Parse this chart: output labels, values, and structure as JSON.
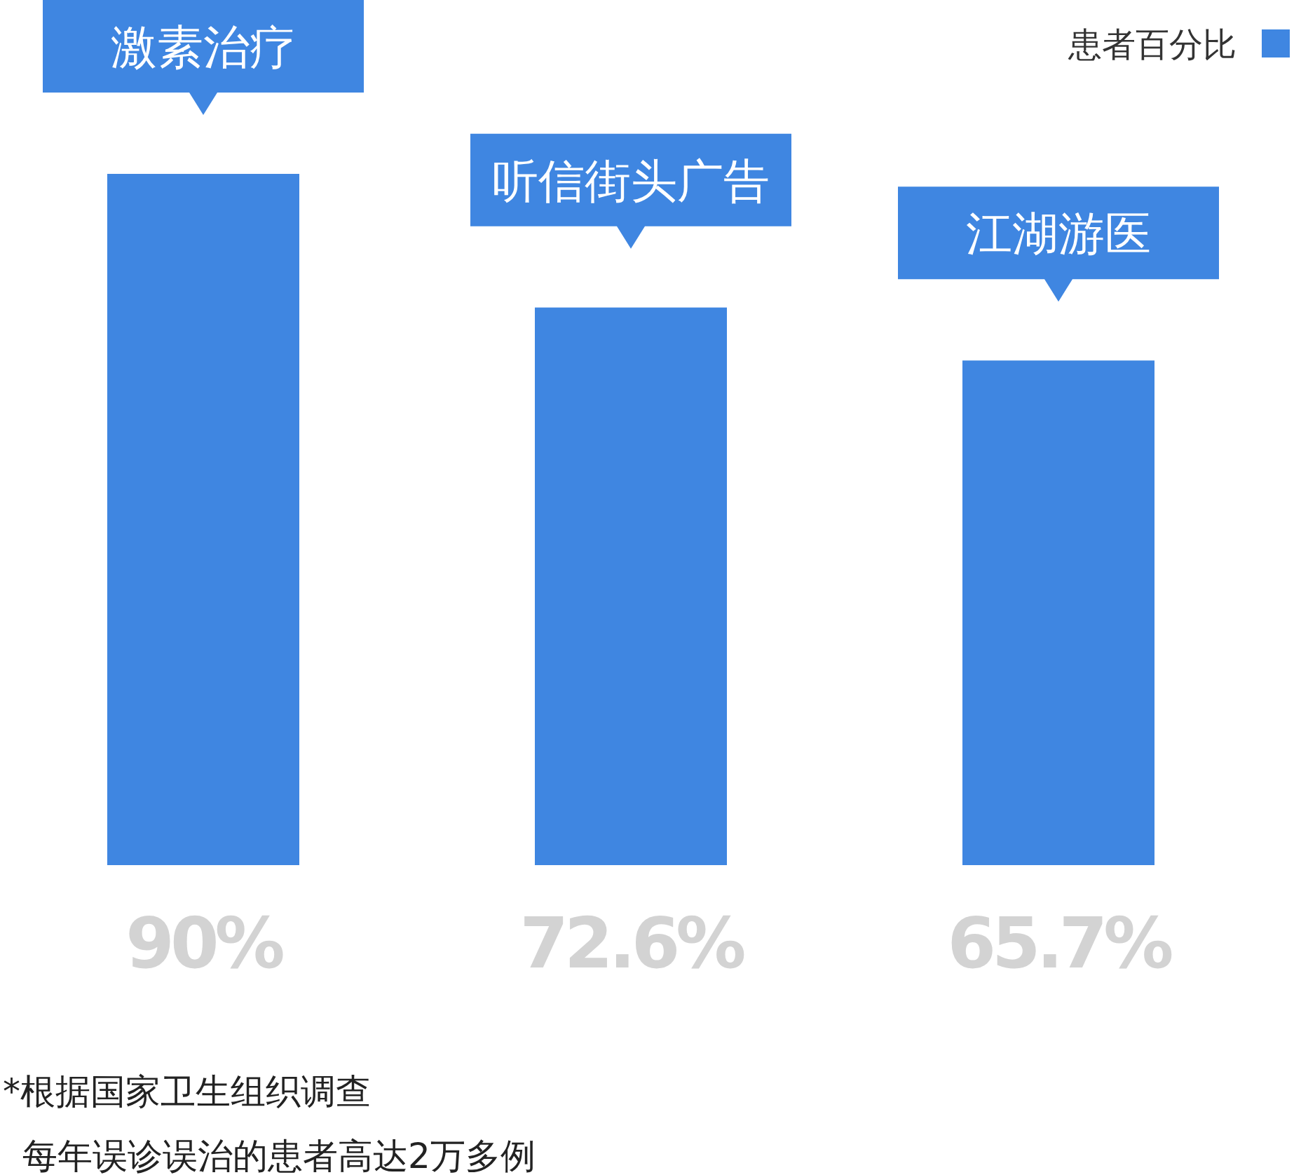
{
  "chart_data": {
    "type": "bar",
    "categories": [
      "激素治疗",
      "听信街头广告",
      "江湖游医"
    ],
    "series": [
      {
        "name": "患者百分比",
        "color": "#3f86e1",
        "values": [
          90,
          72.6,
          65.7
        ],
        "value_labels": [
          "90%",
          "72.6%",
          "65.7%"
        ]
      }
    ],
    "legend": "top right",
    "annotations": [
      "*根据国家卫生组织调查",
      "每年误诊误治的患者高达2万多例"
    ]
  }
}
